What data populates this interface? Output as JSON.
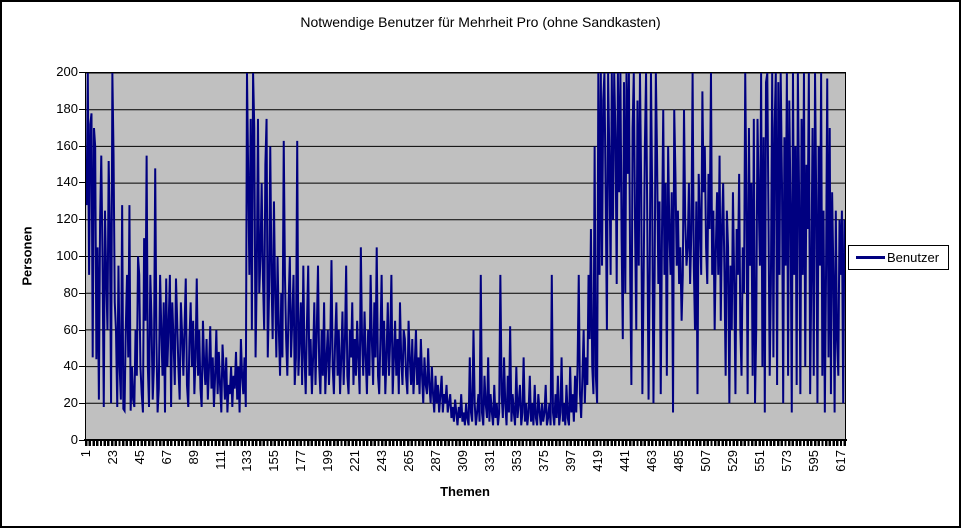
{
  "frame": {
    "background": "#ffffff",
    "border_color": "#000000"
  },
  "chart_data": {
    "type": "line",
    "title": "Notwendige Benutzer für Mehrheit Pro (ohne Sandkasten)",
    "xlabel": "Themen",
    "ylabel": "Personen",
    "legend": {
      "label": "Benutzer",
      "position": "right"
    },
    "series_name": "Benutzer",
    "series_color": "#000080",
    "plot_bg": "#c0c0c0",
    "grid": true,
    "ylim": [
      0,
      200
    ],
    "ytick_step": 20,
    "y_ticks": [
      0,
      20,
      40,
      60,
      80,
      100,
      120,
      140,
      160,
      180,
      200
    ],
    "x_tick_labels": [
      1,
      23,
      45,
      67,
      89,
      111,
      133,
      155,
      177,
      199,
      221,
      243,
      265,
      287,
      309,
      331,
      353,
      375,
      397,
      419,
      441,
      463,
      485,
      507,
      529,
      551,
      573,
      595,
      617
    ],
    "x_range": [
      1,
      620
    ],
    "values_note": "estimated from pixels; values above 200 are clipped at plot top",
    "values": [
      128,
      200,
      90,
      172,
      178,
      45,
      170,
      160,
      44,
      105,
      22,
      120,
      155,
      100,
      18,
      125,
      90,
      60,
      152,
      115,
      20,
      200,
      155,
      75,
      60,
      18,
      95,
      40,
      22,
      128,
      17,
      16,
      60,
      90,
      45,
      128,
      16,
      40,
      22,
      18,
      60,
      35,
      100,
      90,
      40,
      25,
      15,
      110,
      65,
      155,
      40,
      18,
      90,
      65,
      22,
      40,
      148,
      55,
      15,
      28,
      90,
      60,
      35,
      75,
      15,
      88,
      40,
      62,
      90,
      18,
      75,
      55,
      30,
      88,
      65,
      40,
      22,
      75,
      58,
      35,
      62,
      88,
      30,
      18,
      55,
      75,
      40,
      65,
      25,
      45,
      88,
      35,
      60,
      28,
      18,
      65,
      42,
      30,
      55,
      22,
      40,
      62,
      28,
      45,
      18,
      35,
      60,
      25,
      48,
      30,
      15,
      52,
      38,
      22,
      45,
      15,
      30,
      25,
      40,
      18,
      35,
      28,
      48,
      22,
      40,
      15,
      55,
      35,
      25,
      45,
      18,
      200,
      145,
      90,
      175,
      60,
      200,
      170,
      45,
      90,
      175,
      80,
      100,
      140,
      90,
      60,
      150,
      175,
      45,
      80,
      160,
      90,
      55,
      130,
      80,
      45,
      100,
      60,
      35,
      80,
      45,
      163,
      90,
      55,
      35,
      75,
      100,
      45,
      65,
      90,
      30,
      45,
      163,
      35,
      55,
      75,
      30,
      95,
      45,
      25,
      65,
      95,
      35,
      55,
      25,
      45,
      75,
      30,
      60,
      95,
      40,
      25,
      60,
      35,
      75,
      25,
      45,
      60,
      30,
      50,
      98,
      40,
      25,
      55,
      75,
      35,
      60,
      25,
      45,
      70,
      30,
      55,
      95,
      35,
      25,
      60,
      45,
      75,
      30,
      55,
      35,
      65,
      45,
      25,
      105,
      55,
      35,
      70,
      45,
      25,
      60,
      35,
      90,
      55,
      30,
      75,
      45,
      105,
      35,
      25,
      55,
      90,
      35,
      65,
      25,
      45,
      75,
      35,
      55,
      90,
      25,
      45,
      65,
      35,
      55,
      25,
      75,
      45,
      30,
      60,
      55,
      35,
      25,
      65,
      45,
      30,
      55,
      25,
      40,
      60,
      30,
      45,
      25,
      55,
      35,
      20,
      45,
      30,
      25,
      50,
      30,
      20,
      40,
      25,
      15,
      35,
      20,
      30,
      15,
      25,
      35,
      15,
      25,
      20,
      30,
      15,
      20,
      25,
      12,
      18,
      10,
      22,
      15,
      8,
      18,
      12,
      25,
      10,
      15,
      8,
      20,
      12,
      8,
      45,
      15,
      10,
      60,
      20,
      8,
      15,
      25,
      10,
      90,
      15,
      8,
      35,
      20,
      12,
      45,
      10,
      25,
      15,
      8,
      30,
      12,
      20,
      8,
      15,
      90,
      25,
      12,
      45,
      20,
      8,
      35,
      15,
      62,
      10,
      25,
      15,
      8,
      40,
      12,
      20,
      30,
      8,
      15,
      45,
      10,
      20,
      8,
      15,
      35,
      10,
      20,
      8,
      30,
      12,
      8,
      25,
      15,
      8,
      20,
      10,
      15,
      30,
      8,
      12,
      20,
      8,
      90,
      15,
      8,
      25,
      12,
      35,
      8,
      15,
      45,
      10,
      20,
      8,
      30,
      12,
      8,
      40,
      15,
      25,
      10,
      35,
      15,
      40,
      90,
      25,
      12,
      35,
      60,
      20,
      45,
      30,
      90,
      55,
      115,
      40,
      25,
      160,
      35,
      20,
      200,
      90,
      200,
      95,
      185,
      200,
      130,
      60,
      200,
      155,
      90,
      200,
      120,
      200,
      165,
      85,
      200,
      135,
      200,
      110,
      55,
      195,
      80,
      200,
      145,
      200,
      90,
      30,
      170,
      200,
      115,
      60,
      185,
      95,
      200,
      140,
      25,
      90,
      160,
      200,
      120,
      22,
      95,
      200,
      135,
      20,
      90,
      200,
      155,
      85,
      130,
      25,
      110,
      180,
      90,
      140,
      35,
      160,
      115,
      90,
      135,
      15,
      180,
      145,
      95,
      125,
      85,
      105,
      65,
      90,
      180,
      120,
      95,
      105,
      140,
      85,
      115,
      200,
      95,
      60,
      130,
      25,
      145,
      120,
      90,
      190,
      135,
      160,
      105,
      85,
      145,
      115,
      200,
      90,
      125,
      60,
      105,
      135,
      90,
      155,
      65,
      115,
      140,
      90,
      35,
      125,
      105,
      20,
      95,
      60,
      135,
      85,
      25,
      115,
      90,
      145,
      60,
      35,
      105,
      80,
      200,
      130,
      25,
      170,
      95,
      140,
      35,
      175,
      20,
      60,
      175,
      130,
      95,
      200,
      40,
      165,
      15,
      195,
      200,
      120,
      35,
      85,
      200,
      45,
      170,
      200,
      30,
      195,
      90,
      200,
      140,
      20,
      165,
      95,
      200,
      35,
      185,
      125,
      15,
      200,
      90,
      160,
      30,
      200,
      135,
      25,
      175,
      90,
      200,
      40,
      150,
      115,
      200,
      25,
      90,
      170,
      35,
      200,
      130,
      20,
      160,
      95,
      200,
      35,
      125,
      15,
      90,
      197,
      45,
      170,
      25,
      135,
      90,
      15,
      125,
      55,
      35,
      120,
      90,
      125,
      20,
      120
    ]
  }
}
